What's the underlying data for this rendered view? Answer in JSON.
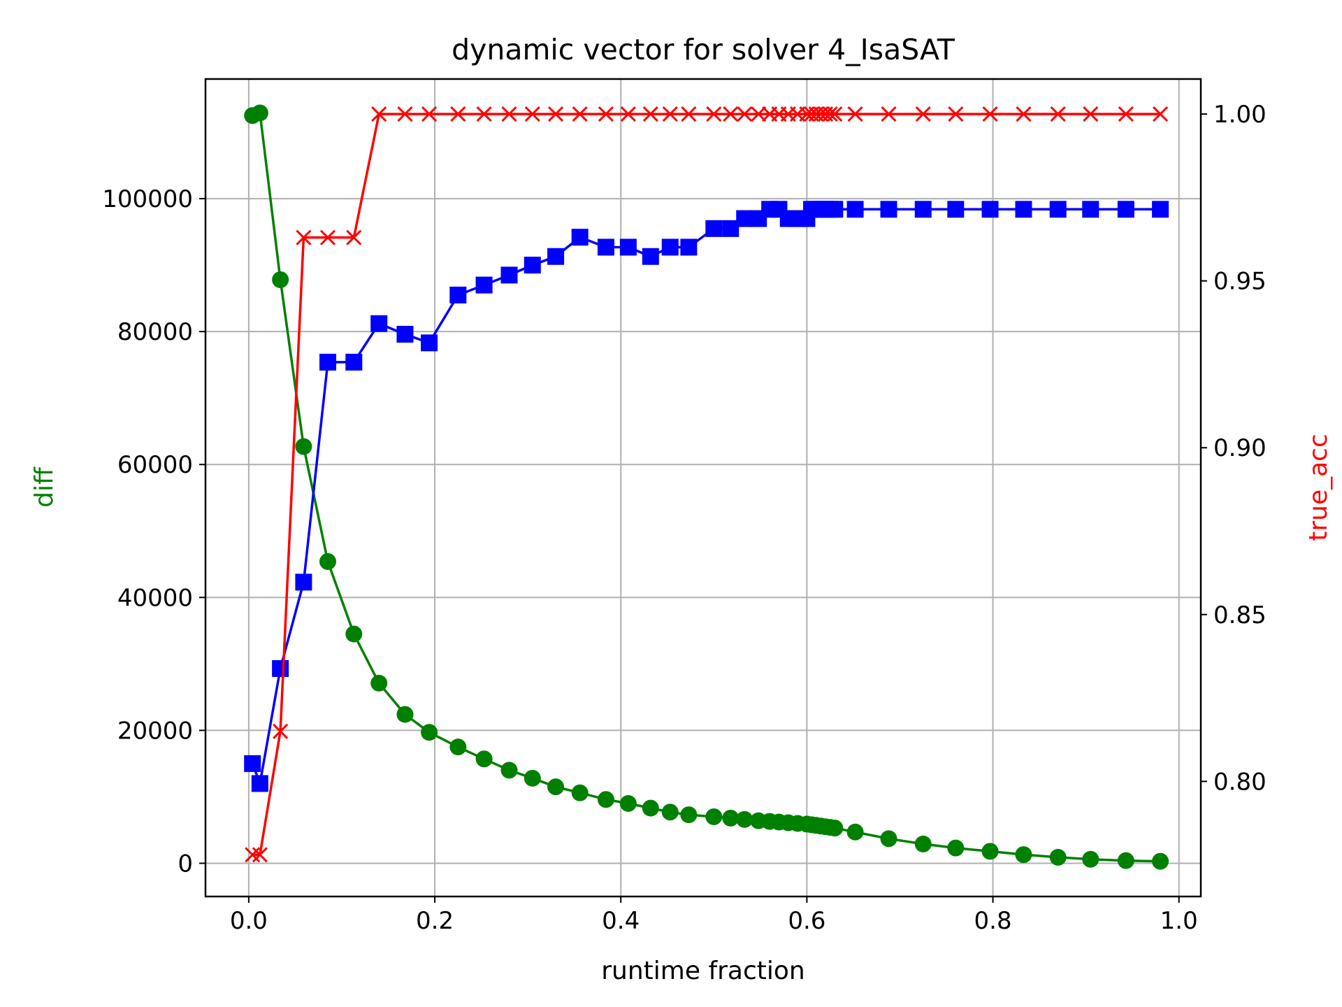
{
  "chart_data": {
    "type": "line",
    "title": "dynamic vector for solver 4_IsaSAT",
    "xlabel": "runtime fraction",
    "ylabel": "diff",
    "y2label": "true_acc",
    "xlim": [
      -0.0465,
      1.0235
    ],
    "ylim": [
      -5000,
      118000
    ],
    "y2lim": [
      0.7655,
      1.0105
    ],
    "xticks": [
      0.0,
      0.2,
      0.4,
      0.6,
      0.8,
      1.0
    ],
    "xtick_labels": [
      "0.0",
      "0.2",
      "0.4",
      "0.6",
      "0.8",
      "1.0"
    ],
    "yticks": [
      0,
      20000,
      40000,
      60000,
      80000,
      100000
    ],
    "ytick_labels": [
      "0",
      "20000",
      "40000",
      "60000",
      "80000",
      "100000"
    ],
    "y2ticks": [
      0.8,
      0.85,
      0.9,
      0.95,
      1.0
    ],
    "y2tick_labels": [
      "0.80",
      "0.85",
      "0.90",
      "0.95",
      "1.00"
    ],
    "grid": true,
    "colors": {
      "diff": "#008000",
      "blue_series": "#0000ff",
      "true_acc": "#ff0000",
      "grid": "#b0b0b0"
    },
    "series": [
      {
        "name": "diff",
        "axis": "left",
        "color": "#008000",
        "marker": "circle",
        "x": [
          0.004,
          0.012,
          0.034,
          0.059,
          0.085,
          0.113,
          0.14,
          0.168,
          0.194,
          0.225,
          0.253,
          0.28,
          0.305,
          0.33,
          0.356,
          0.384,
          0.408,
          0.432,
          0.453,
          0.473,
          0.5,
          0.518,
          0.533,
          0.548,
          0.56,
          0.57,
          0.58,
          0.59,
          0.6,
          0.605,
          0.61,
          0.615,
          0.62,
          0.625,
          0.63,
          0.652,
          0.688,
          0.725,
          0.76,
          0.797,
          0.833,
          0.87,
          0.905,
          0.943,
          0.98
        ],
        "values": [
          112500,
          112900,
          87800,
          62700,
          45400,
          34500,
          27100,
          22400,
          19700,
          17500,
          15700,
          14000,
          12800,
          11500,
          10600,
          9600,
          9000,
          8300,
          7700,
          7300,
          7000,
          6800,
          6600,
          6400,
          6300,
          6200,
          6100,
          6000,
          5900,
          5800,
          5700,
          5600,
          5500,
          5400,
          5300,
          4700,
          3700,
          2900,
          2300,
          1800,
          1300,
          900,
          600,
          400,
          300
        ]
      },
      {
        "name": "blue series",
        "axis": "left",
        "color": "#0000ff",
        "marker": "square",
        "x": [
          0.004,
          0.012,
          0.034,
          0.059,
          0.085,
          0.113,
          0.14,
          0.168,
          0.194,
          0.225,
          0.253,
          0.28,
          0.305,
          0.33,
          0.356,
          0.384,
          0.408,
          0.432,
          0.453,
          0.473,
          0.5,
          0.518,
          0.533,
          0.548,
          0.56,
          0.57,
          0.58,
          0.59,
          0.6,
          0.605,
          0.61,
          0.615,
          0.62,
          0.625,
          0.63,
          0.652,
          0.688,
          0.725,
          0.76,
          0.797,
          0.833,
          0.87,
          0.905,
          0.943,
          0.98
        ],
        "values": [
          15000,
          12000,
          29300,
          42300,
          75400,
          75400,
          81200,
          79600,
          78300,
          85500,
          87000,
          88500,
          90000,
          91300,
          94200,
          92700,
          92700,
          91300,
          92700,
          92700,
          95500,
          95500,
          97000,
          97000,
          98400,
          98400,
          97000,
          97000,
          97000,
          98400,
          98400,
          98400,
          98400,
          98400,
          98400,
          98400,
          98400,
          98400,
          98400,
          98400,
          98400,
          98400,
          98400,
          98400,
          98400
        ]
      },
      {
        "name": "true_acc",
        "axis": "right",
        "color": "#ff0000",
        "marker": "x",
        "x": [
          0.004,
          0.012,
          0.034,
          0.059,
          0.085,
          0.113,
          0.14,
          0.168,
          0.194,
          0.225,
          0.253,
          0.28,
          0.305,
          0.33,
          0.356,
          0.384,
          0.408,
          0.432,
          0.453,
          0.473,
          0.5,
          0.518,
          0.533,
          0.548,
          0.56,
          0.57,
          0.58,
          0.59,
          0.6,
          0.605,
          0.61,
          0.615,
          0.62,
          0.625,
          0.63,
          0.652,
          0.688,
          0.725,
          0.76,
          0.797,
          0.833,
          0.87,
          0.905,
          0.943,
          0.98
        ],
        "values": [
          0.778,
          0.778,
          0.815,
          0.963,
          0.963,
          0.963,
          1.0,
          1.0,
          1.0,
          1.0,
          1.0,
          1.0,
          1.0,
          1.0,
          1.0,
          1.0,
          1.0,
          1.0,
          1.0,
          1.0,
          1.0,
          1.0,
          1.0,
          1.0,
          1.0,
          1.0,
          1.0,
          1.0,
          1.0,
          1.0,
          1.0,
          1.0,
          1.0,
          1.0,
          1.0,
          1.0,
          1.0,
          1.0,
          1.0,
          1.0,
          1.0,
          1.0,
          1.0,
          1.0,
          1.0
        ]
      }
    ]
  }
}
